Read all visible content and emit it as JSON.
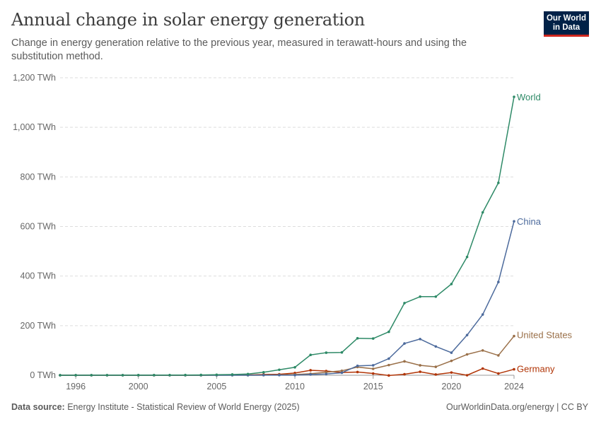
{
  "header": {
    "title": "Annual change in solar energy generation",
    "subtitle": "Change in energy generation relative to the previous year, measured in terawatt-hours and using the substitution method.",
    "logo_line1": "Our World",
    "logo_line2": "in Data"
  },
  "footer": {
    "source_label": "Data source:",
    "source_text": "Energy Institute - Statistical Review of World Energy (2025)",
    "credit": "OurWorldinData.org/energy | CC BY"
  },
  "colors": {
    "World": "#2e8a67",
    "China": "#4c6a9c",
    "United States": "#9a7049",
    "Germany": "#b13507",
    "grid": "#dddddd",
    "axis": "#999999"
  },
  "chart_data": {
    "type": "line",
    "title": "Annual change in solar energy generation",
    "xlabel": "",
    "ylabel": "",
    "xlim": [
      1995,
      2024
    ],
    "ylim": [
      0,
      1200
    ],
    "y_ticks": [
      0,
      200,
      400,
      600,
      800,
      1000,
      1200
    ],
    "y_tick_labels": [
      "0 TWh",
      "200 TWh",
      "400 TWh",
      "600 TWh",
      "800 TWh",
      "1,000 TWh",
      "1,200 TWh"
    ],
    "x_ticks": [
      1996,
      2000,
      2005,
      2010,
      2015,
      2020,
      2024
    ],
    "x_tick_labels": [
      "1996",
      "2000",
      "2005",
      "2010",
      "2015",
      "2020",
      "2024"
    ],
    "grid": true,
    "legend": "labels at line ends (right)",
    "x": [
      1995,
      1996,
      1997,
      1998,
      1999,
      2000,
      2001,
      2002,
      2003,
      2004,
      2005,
      2006,
      2007,
      2008,
      2009,
      2010,
      2011,
      2012,
      2013,
      2014,
      2015,
      2016,
      2017,
      2018,
      2019,
      2020,
      2021,
      2022,
      2023,
      2024
    ],
    "series": [
      {
        "name": "World",
        "values": [
          0.1,
          0.1,
          0.2,
          0.2,
          0.3,
          0.4,
          0.5,
          0.6,
          0.8,
          1.2,
          2,
          3,
          5,
          12,
          22,
          32,
          82,
          91,
          92,
          149,
          148,
          175,
          291,
          317,
          317,
          368,
          477,
          657,
          776,
          1123
        ]
      },
      {
        "name": "China",
        "values": [
          0,
          0,
          0,
          0,
          0,
          0,
          0,
          0,
          0,
          0,
          0,
          0,
          0,
          0.3,
          0.4,
          0.5,
          3,
          5,
          10,
          38,
          40,
          67,
          128,
          146,
          116,
          91,
          162,
          245,
          376,
          621
        ]
      },
      {
        "name": "United States",
        "values": [
          0,
          0,
          0,
          0,
          0,
          0,
          0,
          0,
          0,
          0,
          0,
          0.2,
          0.3,
          0.5,
          1.5,
          3,
          6,
          12,
          18,
          33,
          26,
          41,
          56,
          40,
          34,
          58,
          84,
          100,
          80,
          158
        ]
      },
      {
        "name": "Germany",
        "values": [
          0,
          0,
          0,
          0,
          0,
          0,
          0,
          0,
          0,
          0,
          0.6,
          1,
          1,
          3,
          4,
          9,
          20,
          17,
          11,
          13,
          7,
          -1,
          4,
          14,
          3,
          11,
          0,
          27,
          7,
          24
        ]
      }
    ]
  }
}
